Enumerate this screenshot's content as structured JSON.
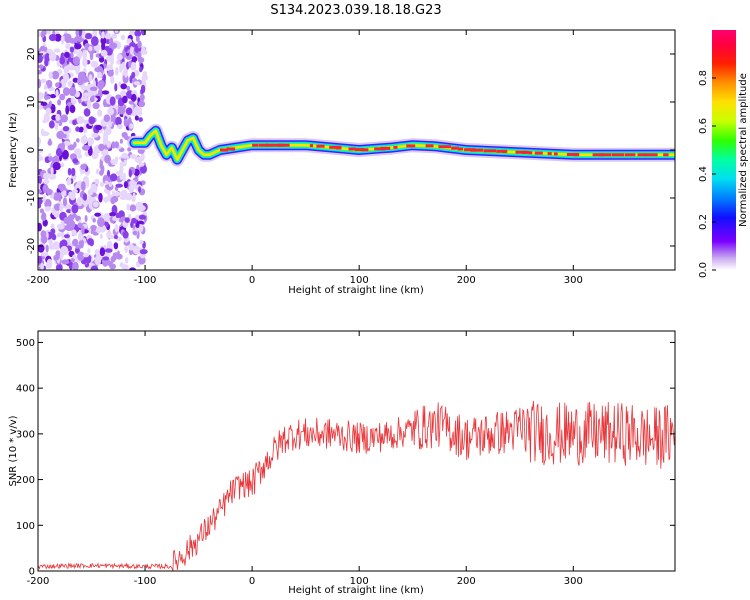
{
  "title": "S134.2023.039.18.18.G23",
  "chart_data": [
    {
      "type": "heatmap",
      "xlabel": "Height of straight line (km)",
      "ylabel": "Frequency (Hz)",
      "xlim": [
        -200,
        395
      ],
      "ylim": [
        -25,
        25
      ],
      "x_ticks": [
        "-200",
        "-100",
        "0",
        "100",
        "200",
        "300"
      ],
      "y_ticks": [
        "-20",
        "-10",
        "0",
        "10",
        "20"
      ],
      "colorbar": {
        "label": "Normalized spectral amplitude",
        "range": [
          0,
          1
        ],
        "ticks": [
          "0.0",
          "0.2",
          "0.4",
          "0.6",
          "0.8"
        ]
      },
      "noise_region_x": [
        -200,
        -100
      ],
      "signal_trace": {
        "x": [
          -110,
          -100,
          -95,
          -90,
          -85,
          -80,
          -75,
          -70,
          -65,
          -60,
          -55,
          -50,
          -45,
          -40,
          -30,
          0,
          50,
          100,
          130,
          150,
          170,
          200,
          250,
          300,
          350,
          395
        ],
        "y": [
          1.5,
          1.5,
          3,
          4,
          1,
          -1,
          0.5,
          -2,
          0,
          2,
          2.5,
          0,
          -1,
          -1,
          0,
          1,
          1,
          0,
          0.5,
          1,
          0.8,
          0,
          -0.5,
          -1,
          -1,
          -1
        ]
      }
    },
    {
      "type": "line",
      "xlabel": "Height of straight line (km)",
      "ylabel": "SNR (10 * v/v)",
      "xlim": [
        -200,
        395
      ],
      "ylim": [
        0,
        525
      ],
      "x_ticks": [
        "-200",
        "-100",
        "0",
        "100",
        "200",
        "300"
      ],
      "y_ticks": [
        "0",
        "100",
        "200",
        "300",
        "400",
        "500"
      ],
      "color": "#e8363a",
      "series": [
        {
          "x": [
            -200,
            -150,
            -100,
            -75,
            -70,
            -60,
            -50,
            -40,
            -30,
            -20,
            -10,
            0,
            10,
            20,
            30,
            40,
            50,
            75,
            100,
            125,
            150,
            175,
            200,
            225,
            250,
            275,
            300,
            325,
            350,
            375,
            395
          ],
          "values": [
            10,
            12,
            10,
            10,
            25,
            45,
            70,
            100,
            130,
            170,
            190,
            190,
            230,
            260,
            290,
            300,
            300,
            300,
            290,
            295,
            310,
            320,
            290,
            300,
            310,
            300,
            300,
            300,
            300,
            290,
            300
          ]
        }
      ]
    }
  ]
}
